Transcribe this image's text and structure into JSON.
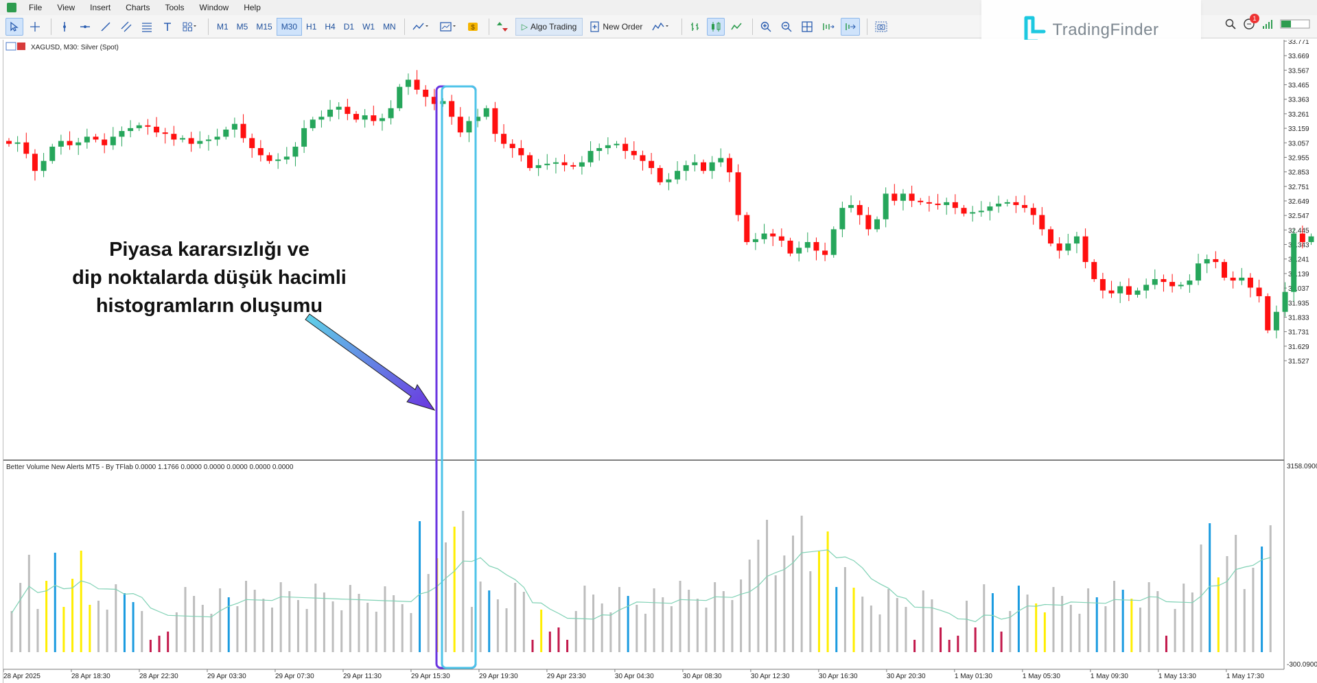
{
  "menu": [
    "File",
    "View",
    "Insert",
    "Charts",
    "Tools",
    "Window",
    "Help"
  ],
  "toolbar": {
    "timeframes": [
      "M1",
      "M5",
      "M15",
      "M30",
      "H1",
      "H4",
      "D1",
      "W1",
      "MN"
    ],
    "active_timeframe": "M30",
    "algo_trading": "Algo Trading",
    "new_order": "New Order"
  },
  "watermark": {
    "brand": "TradingFinder"
  },
  "notifications": {
    "count": "1"
  },
  "chart": {
    "title": "XAGUSD, M30:  Silver (Spot)",
    "price_axis": [
      "33.771",
      "33.669",
      "33.567",
      "33.465",
      "33.363",
      "33.261",
      "33.159",
      "33.057",
      "32.955",
      "32.853",
      "32.751",
      "32.649",
      "32.547",
      "32.445",
      "32.343",
      "32.241",
      "32.139",
      "32.037",
      "31.935",
      "31.833",
      "31.731",
      "31.629",
      "31.527"
    ],
    "annotation": [
      "Piyasa kararsızlığı ve",
      "dip noktalarda düşük hacimli",
      "histogramların oluşumu"
    ],
    "indicator_title": "Better Volume New Alerts MT5 - By TFlab 0.0000 1.1766 0.0000 0.0000 0.0000 0.0000 0.0000",
    "indicator_axis_top": "3158.0900",
    "indicator_axis_bottom": "-300.0900",
    "time_axis": [
      "28 Apr 2025",
      "28 Apr 18:30",
      "28 Apr 22:30",
      "29 Apr 03:30",
      "29 Apr 07:30",
      "29 Apr 11:30",
      "29 Apr 15:30",
      "29 Apr 19:30",
      "29 Apr 23:30",
      "30 Apr 04:30",
      "30 Apr 08:30",
      "30 Apr 12:30",
      "30 Apr 16:30",
      "30 Apr 20:30",
      "1 May 01:30",
      "1 May 05:30",
      "1 May 09:30",
      "1 May 13:30",
      "1 May 17:30"
    ],
    "colors": {
      "bull": "#26a65b",
      "bear": "#ff1010",
      "vol_gray": "#bdbdbd",
      "vol_yellow": "#ffee00",
      "vol_blue": "#1a9be0",
      "vol_red": "#c2184b",
      "ma_line": "#7fd1b4",
      "highlight_outer": "#6a35e0",
      "highlight_inner": "#4dc3e8"
    }
  },
  "chart_data": {
    "type": "candlestick",
    "title": "XAGUSD, M30:  Silver (Spot)",
    "candles_close": [
      33.05,
      33.06,
      32.98,
      32.86,
      32.93,
      33.03,
      33.07,
      33.04,
      33.06,
      33.1,
      33.08,
      33.04,
      33.1,
      33.14,
      33.16,
      33.18,
      33.17,
      33.13,
      33.12,
      33.08,
      33.09,
      33.05,
      33.07,
      33.08,
      33.1,
      33.15,
      33.19,
      33.09,
      33.02,
      32.97,
      32.93,
      32.94,
      32.96,
      33.03,
      33.16,
      33.22,
      33.24,
      33.29,
      33.31,
      33.26,
      33.22,
      33.25,
      33.21,
      33.23,
      33.3,
      33.45,
      33.5,
      33.43,
      33.38,
      33.33,
      33.35,
      33.24,
      33.13,
      33.21,
      33.24,
      33.3,
      33.12,
      33.05,
      33.02,
      32.97,
      32.88,
      32.9,
      32.91,
      32.92,
      32.9,
      32.89,
      32.92,
      33.0,
      33.02,
      33.04,
      33.05,
      33.0,
      32.97,
      32.93,
      32.88,
      32.78,
      32.8,
      32.86,
      32.9,
      32.92,
      32.86,
      32.92,
      32.95,
      32.85,
      32.55,
      32.36,
      32.38,
      32.42,
      32.4,
      32.37,
      32.28,
      32.32,
      32.36,
      32.3,
      32.27,
      32.45,
      32.6,
      32.62,
      32.55,
      32.45,
      32.52,
      32.7,
      32.65,
      32.7,
      32.65,
      32.64,
      32.63,
      32.62,
      32.64,
      32.6,
      32.56,
      32.57,
      32.58,
      32.61,
      32.63,
      32.64,
      32.62,
      32.6,
      32.55,
      32.45,
      32.35,
      32.3,
      32.35,
      32.4,
      32.22,
      32.1,
      32.02,
      32.0,
      32.05,
      31.99,
      32.02,
      32.06,
      32.1,
      32.08,
      32.05,
      32.06,
      32.09,
      32.21,
      32.24,
      32.22,
      32.11,
      32.09,
      32.11,
      32.04,
      31.98,
      31.74,
      31.87,
      32.01,
      32.42,
      32.36,
      32.4,
      32.34,
      32.32,
      32.3
    ],
    "volume_ma_trend": "flat, rising into 29 Apr 15:30, falling, rising to peak near 30 Apr 08:30-12:30, falling, rising to peak near 1 May 13:30"
  }
}
